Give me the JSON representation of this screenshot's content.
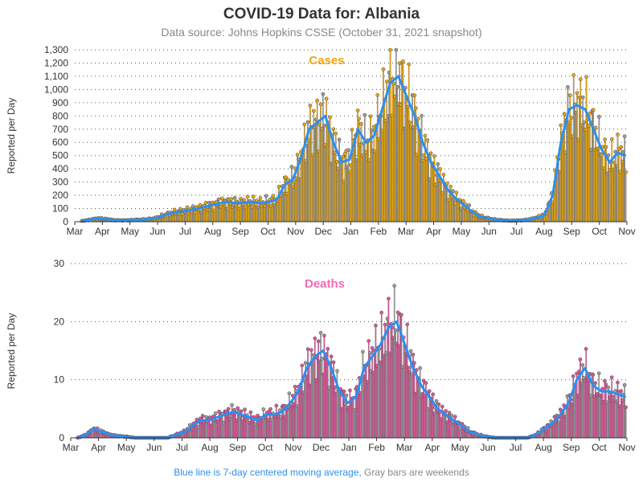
{
  "title": "COVID-19 Data for: Albania",
  "subtitle": "Data source: Johns Hopkins CSSE (October 31, 2021 snapshot)",
  "footnote": {
    "blue_part": "Blue line is 7-day centered moving average,",
    "gray_part": " Gray bars are weekends"
  },
  "colors": {
    "cases_bar": "#f2a900",
    "cases_label": "#f5a50a",
    "deaths_bar": "#e6539f",
    "deaths_label": "#f06cb4",
    "moving_average": "#2c8ff0",
    "weekend_bar": "#9e9e9e",
    "footnote_blue": "#2c8ff0",
    "footnote_gray": "#888888"
  },
  "chart_data": [
    {
      "type": "bar",
      "name": "Cases",
      "ylabel": "Reported per Day",
      "xlabel": "",
      "ylim": [
        0,
        1300
      ],
      "yticks": [
        0,
        100,
        200,
        300,
        400,
        500,
        600,
        700,
        800,
        900,
        1000,
        1100,
        1200,
        1300
      ],
      "ytick_labels": [
        "0",
        "100",
        "200",
        "300",
        "400",
        "500",
        "600",
        "700",
        "800",
        "900",
        "1,000",
        "1,100",
        "1,200",
        "1,300"
      ],
      "xticks": [
        "Mar",
        "Apr",
        "May",
        "Jun",
        "Jul",
        "Aug",
        "Sep",
        "Oct",
        "Nov",
        "Dec",
        "Jan",
        "Feb",
        "Mar",
        "Apr",
        "May",
        "Jun",
        "Jul",
        "Aug",
        "Sep",
        "Oct",
        "Nov"
      ],
      "grid": "horizontal dotted",
      "series_line": "7-day centered moving average",
      "weekly_values": [
        5,
        15,
        25,
        20,
        12,
        10,
        12,
        15,
        18,
        25,
        45,
        65,
        75,
        85,
        95,
        110,
        125,
        140,
        150,
        140,
        145,
        150,
        140,
        150,
        165,
        280,
        320,
        480,
        700,
        750,
        800,
        600,
        450,
        470,
        700,
        600,
        650,
        850,
        1050,
        1100,
        950,
        800,
        600,
        450,
        350,
        250,
        180,
        130,
        80,
        40,
        25,
        15,
        10,
        8,
        10,
        15,
        30,
        50,
        200,
        600,
        850,
        880,
        850,
        700,
        550,
        450,
        520,
        500
      ]
    },
    {
      "type": "bar",
      "name": "Deaths",
      "ylabel": "Reported per Day",
      "xlabel": "",
      "ylim": [
        0,
        30
      ],
      "yticks": [
        0,
        10,
        20,
        30
      ],
      "ytick_labels": [
        "0",
        "10",
        "20",
        "30"
      ],
      "xticks": [
        "Mar",
        "Apr",
        "May",
        "Jun",
        "Jul",
        "Aug",
        "Sep",
        "Oct",
        "Nov",
        "Dec",
        "Jan",
        "Feb",
        "Mar",
        "Apr",
        "May",
        "Jun",
        "Jul",
        "Aug",
        "Sep",
        "Oct",
        "Nov"
      ],
      "grid": "horizontal dotted",
      "series_line": "7-day centered moving average",
      "weekly_values": [
        0,
        0.5,
        1.5,
        1,
        0.5,
        0.3,
        0.2,
        0,
        0,
        0,
        0,
        0,
        0.5,
        1,
        2,
        3,
        3,
        3.5,
        4,
        4.5,
        4,
        3.5,
        3,
        4,
        4,
        4.5,
        6,
        8,
        12,
        14,
        15,
        12,
        8,
        6,
        7,
        12,
        14,
        16,
        19,
        20,
        16,
        12,
        9,
        7,
        5,
        4,
        3,
        2,
        1,
        0.5,
        0.2,
        0,
        0,
        0,
        0,
        0,
        0.5,
        1.5,
        2.5,
        4,
        6,
        10,
        12,
        9,
        8,
        8,
        7.5,
        7
      ]
    }
  ]
}
